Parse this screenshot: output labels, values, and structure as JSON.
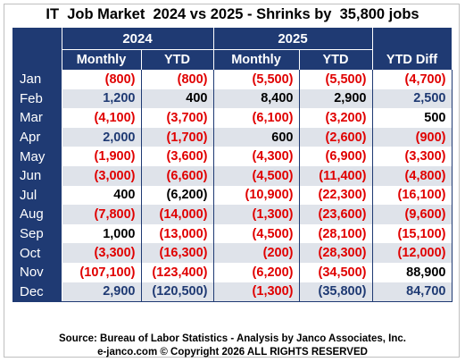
{
  "chart_data": {
    "type": "table",
    "title": "IT  Job Market  2024 vs 2025 - Shrinks by  35,800 jobs",
    "group_headers": [
      "2024",
      "2025"
    ],
    "columns": [
      "Monthly",
      "YTD",
      "Monthly",
      "YTD",
      "YTD Diff"
    ],
    "rows": [
      {
        "month": "Jan",
        "cells": [
          {
            "t": "(800)",
            "c": "neg"
          },
          {
            "t": "(800)",
            "c": "neg"
          },
          {
            "t": "(5,500)",
            "c": "neg"
          },
          {
            "t": "(5,500)",
            "c": "neg"
          },
          {
            "t": "(4,700)",
            "c": "neg"
          }
        ]
      },
      {
        "month": "Feb",
        "cells": [
          {
            "t": "1,200",
            "c": "pos"
          },
          {
            "t": "400",
            "c": "blk"
          },
          {
            "t": "8,400",
            "c": "blk"
          },
          {
            "t": "2,900",
            "c": "blk"
          },
          {
            "t": "2,500",
            "c": "pos"
          }
        ]
      },
      {
        "month": "Mar",
        "cells": [
          {
            "t": "(4,100)",
            "c": "neg"
          },
          {
            "t": "(3,700)",
            "c": "neg"
          },
          {
            "t": "(6,100)",
            "c": "neg"
          },
          {
            "t": "(3,200)",
            "c": "neg"
          },
          {
            "t": "500",
            "c": "blk"
          }
        ]
      },
      {
        "month": "Apr",
        "cells": [
          {
            "t": "2,000",
            "c": "pos"
          },
          {
            "t": "(1,700)",
            "c": "neg"
          },
          {
            "t": "600",
            "c": "blk"
          },
          {
            "t": "(2,600)",
            "c": "neg"
          },
          {
            "t": "(900)",
            "c": "neg"
          }
        ]
      },
      {
        "month": "May",
        "cells": [
          {
            "t": "(1,900)",
            "c": "neg"
          },
          {
            "t": "(3,600)",
            "c": "neg"
          },
          {
            "t": "(4,300)",
            "c": "neg"
          },
          {
            "t": "(6,900)",
            "c": "neg"
          },
          {
            "t": "(3,300)",
            "c": "neg"
          }
        ]
      },
      {
        "month": "Jun",
        "cells": [
          {
            "t": "(3,000)",
            "c": "neg"
          },
          {
            "t": "(6,600)",
            "c": "neg"
          },
          {
            "t": "(4,500)",
            "c": "neg"
          },
          {
            "t": "(11,400)",
            "c": "neg"
          },
          {
            "t": "(4,800)",
            "c": "neg"
          }
        ]
      },
      {
        "month": "Jul",
        "cells": [
          {
            "t": "400",
            "c": "blk"
          },
          {
            "t": "(6,200)",
            "c": "blk"
          },
          {
            "t": "(10,900)",
            "c": "neg"
          },
          {
            "t": "(22,300)",
            "c": "neg"
          },
          {
            "t": "(16,100)",
            "c": "neg"
          }
        ]
      },
      {
        "month": "Aug",
        "cells": [
          {
            "t": "(7,800)",
            "c": "neg"
          },
          {
            "t": "(14,000)",
            "c": "neg"
          },
          {
            "t": "(1,300)",
            "c": "neg"
          },
          {
            "t": "(23,600)",
            "c": "neg"
          },
          {
            "t": "(9,600)",
            "c": "neg"
          }
        ]
      },
      {
        "month": "Sep",
        "cells": [
          {
            "t": "1,000",
            "c": "blk"
          },
          {
            "t": "(13,000)",
            "c": "neg"
          },
          {
            "t": "(4,500)",
            "c": "neg"
          },
          {
            "t": "(28,100)",
            "c": "neg"
          },
          {
            "t": "(15,100)",
            "c": "neg"
          }
        ]
      },
      {
        "month": "Oct",
        "cells": [
          {
            "t": "(3,300)",
            "c": "neg"
          },
          {
            "t": "(16,300)",
            "c": "neg"
          },
          {
            "t": "(200)",
            "c": "neg"
          },
          {
            "t": "(28,300)",
            "c": "neg"
          },
          {
            "t": "(12,000)",
            "c": "neg"
          }
        ]
      },
      {
        "month": "Nov",
        "cells": [
          {
            "t": "(107,100)",
            "c": "neg"
          },
          {
            "t": "(123,400)",
            "c": "neg"
          },
          {
            "t": "(6,200)",
            "c": "neg"
          },
          {
            "t": "(34,500)",
            "c": "neg"
          },
          {
            "t": "88,900",
            "c": "blk"
          }
        ]
      },
      {
        "month": "Dec",
        "cells": [
          {
            "t": "2,900",
            "c": "pos"
          },
          {
            "t": "(120,500)",
            "c": "pos"
          },
          {
            "t": "(1,300)",
            "c": "neg"
          },
          {
            "t": "(35,800)",
            "c": "pos"
          },
          {
            "t": "84,700",
            "c": "pos"
          }
        ]
      }
    ],
    "source": "Source: Bureau of Labor Statistics - Analysis by Janco Associates, Inc.",
    "copyright": "e-janco.com © Copyright 2026 ALL RIGHTS RESERVED"
  },
  "colors": {
    "header_bg": "#1f3a73",
    "negative": "#e00000",
    "positive": "#1f3a73",
    "stripe": "#dfe3ea"
  }
}
